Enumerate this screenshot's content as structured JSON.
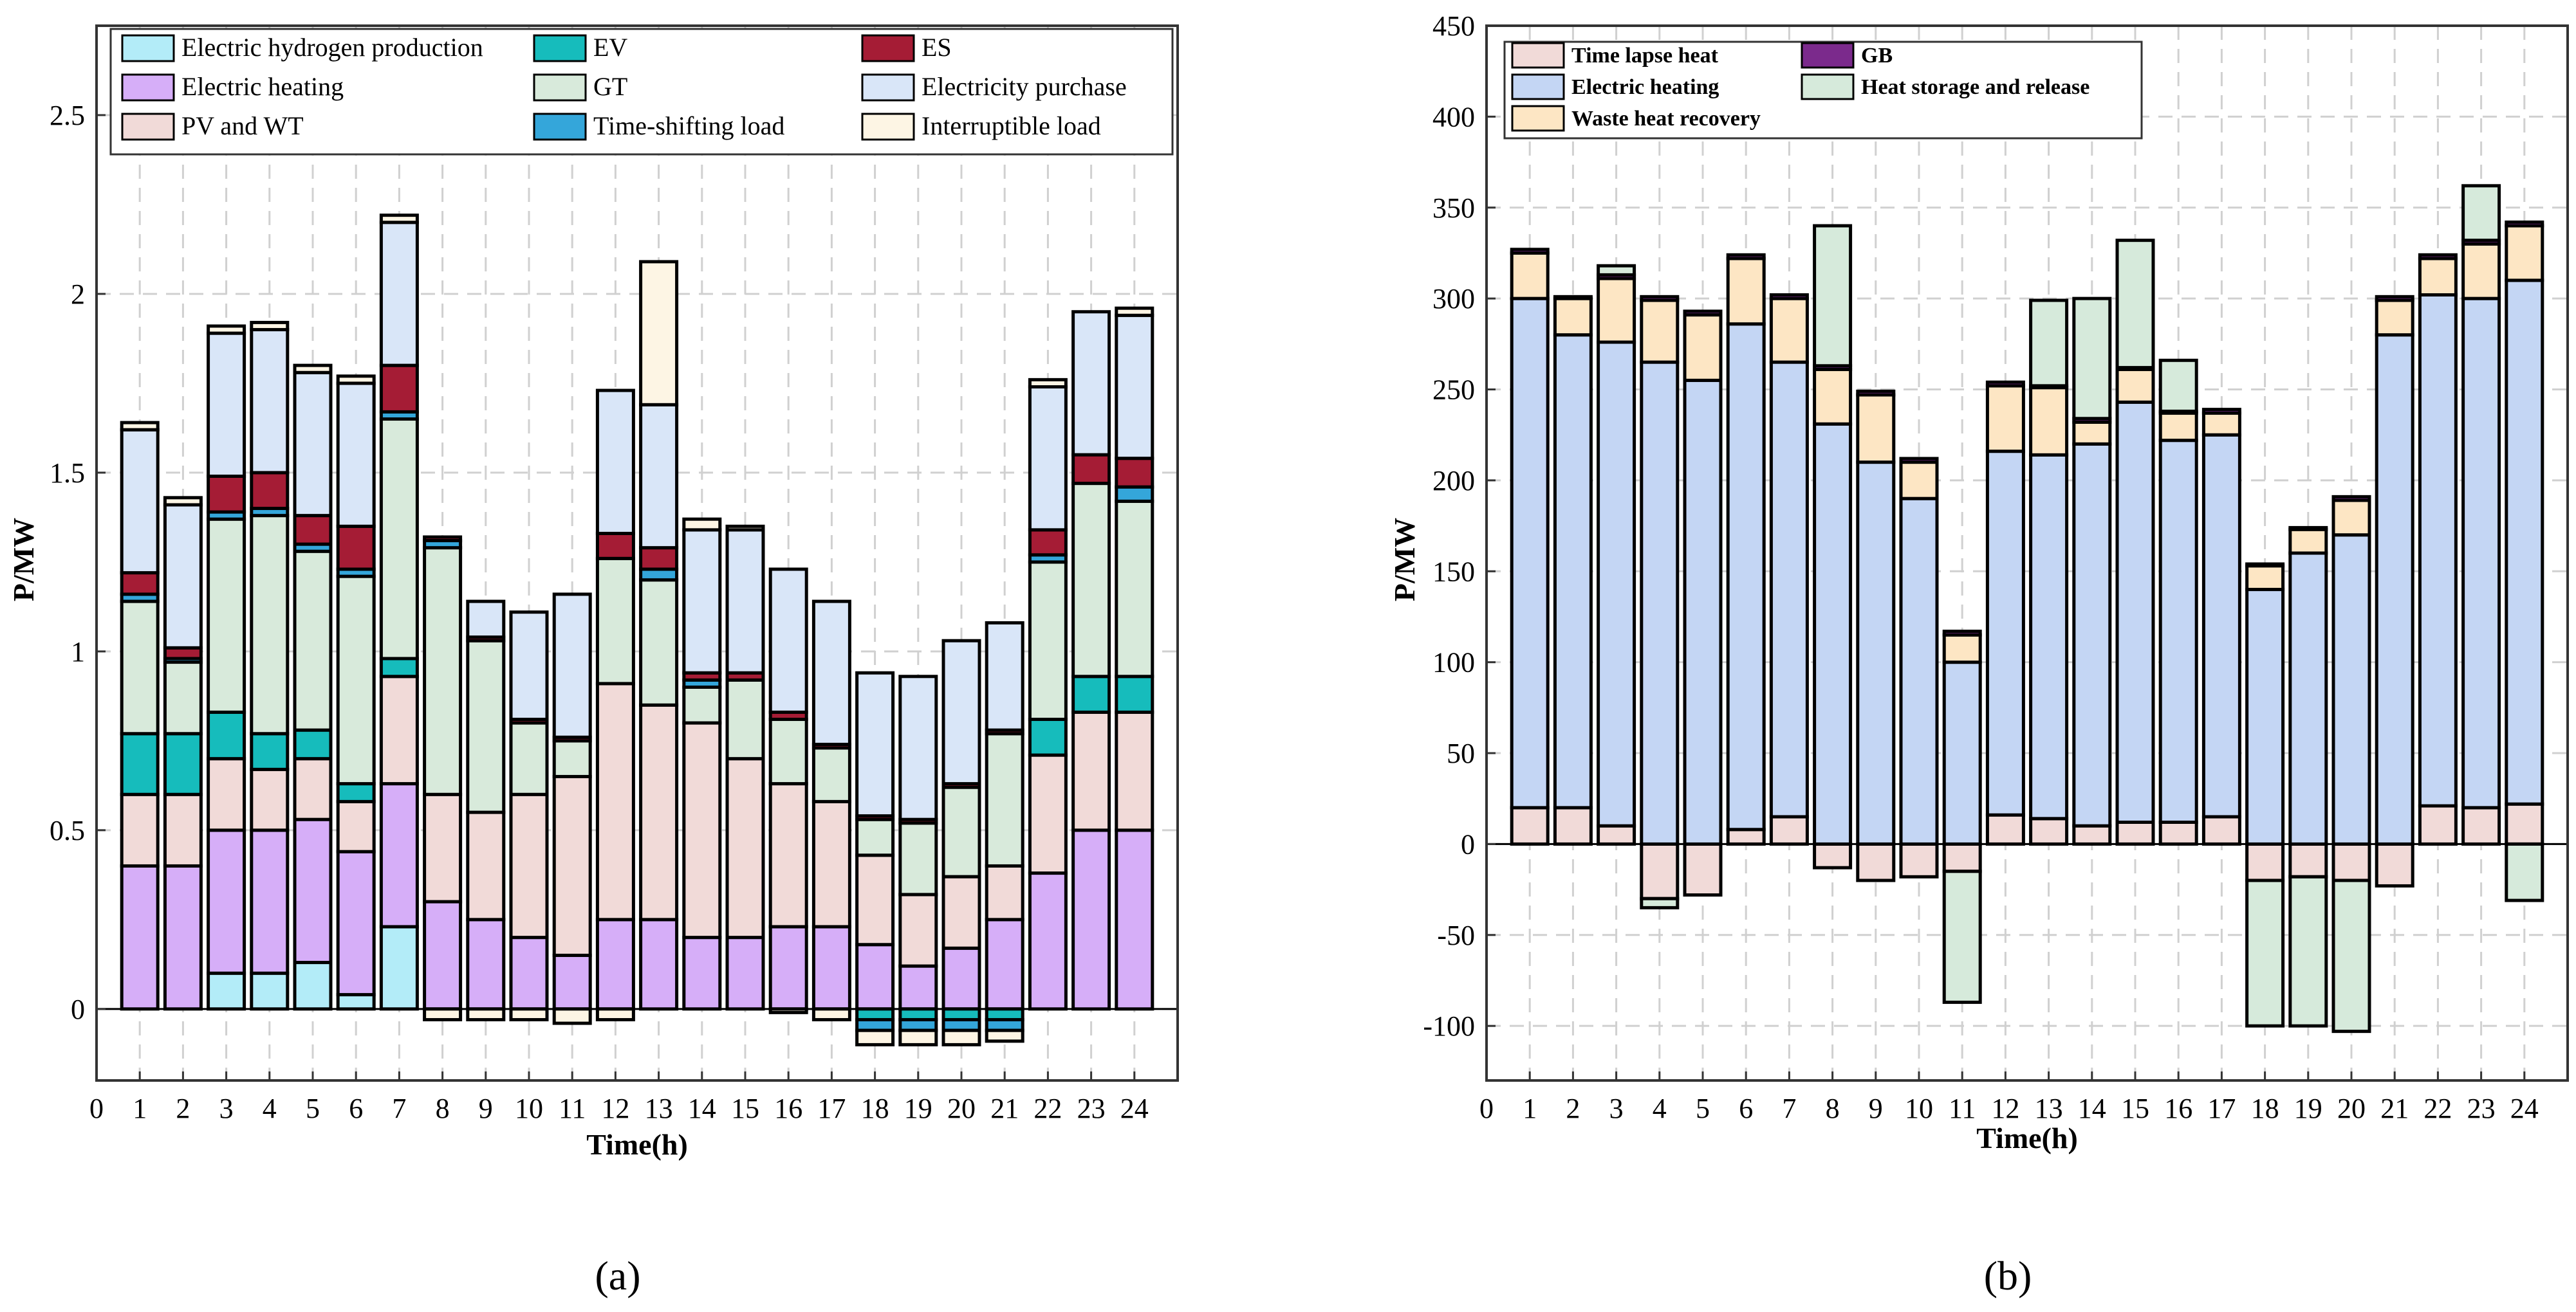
{
  "captions": {
    "a": "(a)",
    "b": "(b)"
  },
  "chart_data": [
    {
      "id": "a",
      "type": "bar",
      "stacked": true,
      "title": "",
      "xlabel": "Time(h)",
      "ylabel": "P/MW",
      "xlim": [
        0,
        25
      ],
      "ylim": [
        -0.2,
        2.75
      ],
      "yticks": [
        0,
        0.5,
        1,
        1.5,
        2,
        2.5
      ],
      "ytick_labels": [
        "0",
        "0.5",
        "1",
        "1.5",
        "2",
        "2.5"
      ],
      "xticks": [
        0,
        1,
        2,
        3,
        4,
        5,
        6,
        7,
        8,
        9,
        10,
        11,
        12,
        13,
        14,
        15,
        16,
        17,
        18,
        19,
        20,
        21,
        22,
        23,
        24
      ],
      "grid": true,
      "legend_position": "top",
      "categories": [
        1,
        2,
        3,
        4,
        5,
        6,
        7,
        8,
        9,
        10,
        11,
        12,
        13,
        14,
        15,
        16,
        17,
        18,
        19,
        20,
        21,
        22,
        23,
        24
      ],
      "legend": [
        {
          "name": "Electric hydrogen production",
          "color": "#b3ecf8"
        },
        {
          "name": "EV",
          "color": "#16bcbc"
        },
        {
          "name": "ES",
          "color": "#a51c35"
        },
        {
          "name": "Electric heating",
          "color": "#d6aef8"
        },
        {
          "name": "GT",
          "color": "#d8eadb"
        },
        {
          "name": "Electricity purchase",
          "color": "#d9e6f8"
        },
        {
          "name": "PV and WT",
          "color": "#f1dad8"
        },
        {
          "name": "Time-shifting load",
          "color": "#34a6da"
        },
        {
          "name": "Interruptible load",
          "color": "#fdf5e4"
        }
      ],
      "series": [
        {
          "name": "Electric hydrogen production",
          "color": "#b3ecf8",
          "values": [
            0,
            0,
            0.1,
            0.1,
            0.13,
            0.04,
            0.23,
            0,
            0,
            0,
            0,
            0,
            0,
            0,
            0,
            0,
            0,
            0,
            0,
            0,
            0,
            0,
            0,
            0
          ]
        },
        {
          "name": "Electric heating",
          "color": "#d6aef8",
          "values": [
            0.4,
            0.4,
            0.4,
            0.4,
            0.4,
            0.4,
            0.4,
            0.3,
            0.25,
            0.2,
            0.15,
            0.25,
            0.25,
            0.2,
            0.2,
            0.23,
            0.23,
            0.18,
            0.12,
            0.17,
            0.25,
            0.38,
            0.5,
            0.5
          ]
        },
        {
          "name": "PV and WT",
          "color": "#f1dad8",
          "values": [
            0.2,
            0.2,
            0.2,
            0.17,
            0.17,
            0.14,
            0.3,
            0.3,
            0.3,
            0.4,
            0.5,
            0.66,
            0.6,
            0.6,
            0.5,
            0.4,
            0.35,
            0.25,
            0.2,
            0.2,
            0.15,
            0.33,
            0.33,
            0.33
          ]
        },
        {
          "name": "EV",
          "color": "#16bcbc",
          "values": [
            0.17,
            0.17,
            0.13,
            0.1,
            0.08,
            0.05,
            0.05,
            0,
            0,
            0,
            0,
            0,
            0,
            0,
            0,
            0,
            0,
            -0.03,
            -0.03,
            -0.03,
            -0.03,
            0.1,
            0.1,
            0.1
          ]
        },
        {
          "name": "GT",
          "color": "#d8eadb",
          "values": [
            0.37,
            0.2,
            0.54,
            0.61,
            0.5,
            0.58,
            0.67,
            0.69,
            0.48,
            0.2,
            0.1,
            0.35,
            0.35,
            0.1,
            0.22,
            0.18,
            0.15,
            0.1,
            0.2,
            0.25,
            0.37,
            0.44,
            0.54,
            0.49
          ]
        },
        {
          "name": "Time-shifting load",
          "color": "#34a6da",
          "values": [
            0.02,
            0.01,
            0.02,
            0.02,
            0.02,
            0.02,
            0.02,
            0.02,
            0,
            0,
            0,
            0,
            0.03,
            0.02,
            0,
            0,
            0,
            -0.03,
            -0.03,
            -0.03,
            -0.03,
            0.02,
            0,
            0.04
          ]
        },
        {
          "name": "ES",
          "color": "#a51c35",
          "values": [
            0.06,
            0.03,
            0.1,
            0.1,
            0.08,
            0.12,
            0.13,
            0.01,
            0.01,
            0.01,
            0.01,
            0.07,
            0.06,
            0.02,
            0.02,
            0.02,
            0.01,
            0.01,
            0.01,
            0.01,
            0.01,
            0.07,
            0.08,
            0.08
          ]
        },
        {
          "name": "Electricity purchase",
          "color": "#d9e6f8",
          "values": [
            0.4,
            0.4,
            0.4,
            0.4,
            0.4,
            0.4,
            0.4,
            0,
            0.1,
            0.3,
            0.4,
            0.4,
            0.4,
            0.4,
            0.4,
            0.4,
            0.4,
            0.4,
            0.4,
            0.4,
            0.3,
            0.4,
            0.4,
            0.4
          ]
        },
        {
          "name": "Interruptible load",
          "color": "#fdf5e4",
          "values": [
            0.02,
            0.02,
            0.02,
            0.02,
            0.02,
            0.02,
            0.02,
            -0.03,
            -0.03,
            -0.03,
            -0.04,
            -0.03,
            0.4,
            0.03,
            0.01,
            -0.01,
            -0.03,
            -0.04,
            -0.04,
            -0.04,
            -0.03,
            0.02,
            0,
            0.02
          ]
        }
      ]
    },
    {
      "id": "b",
      "type": "bar",
      "stacked": true,
      "title": "",
      "xlabel": "Time(h)",
      "ylabel": "P/MW",
      "xlim": [
        0,
        25
      ],
      "ylim": [
        -130,
        450
      ],
      "yticks": [
        -100,
        -50,
        0,
        50,
        100,
        150,
        200,
        250,
        300,
        350,
        400,
        450
      ],
      "ytick_labels": [
        "-100",
        "-50",
        "0",
        "50",
        "100",
        "150",
        "200",
        "250",
        "300",
        "350",
        "400",
        "450"
      ],
      "xticks": [
        0,
        1,
        2,
        3,
        4,
        5,
        6,
        7,
        8,
        9,
        10,
        11,
        12,
        13,
        14,
        15,
        16,
        17,
        18,
        19,
        20,
        21,
        22,
        23,
        24
      ],
      "grid": true,
      "legend_position": "top-left",
      "categories": [
        1,
        2,
        3,
        4,
        5,
        6,
        7,
        8,
        9,
        10,
        11,
        12,
        13,
        14,
        15,
        16,
        17,
        18,
        19,
        20,
        21,
        22,
        23,
        24
      ],
      "legend": [
        {
          "name": "Time lapse heat",
          "color": "#f1dad8"
        },
        {
          "name": "GB",
          "color": "#7b2a8c"
        },
        {
          "name": "Electric heating",
          "color": "#c4d6f4"
        },
        {
          "name": "Heat storage and release",
          "color": "#d6eadb"
        },
        {
          "name": "Waste heat recovery",
          "color": "#fde6c4"
        }
      ],
      "series": [
        {
          "name": "Time lapse heat",
          "color": "#f1dad8",
          "values": [
            20,
            20,
            10,
            -30,
            -28,
            8,
            15,
            -13,
            -20,
            -18,
            -15,
            16,
            14,
            10,
            12,
            12,
            15,
            -20,
            -18,
            -20,
            -23,
            21,
            20,
            22
          ]
        },
        {
          "name": "Electric heating",
          "color": "#c4d6f4",
          "values": [
            280,
            260,
            266,
            265,
            255,
            278,
            250,
            231,
            210,
            190,
            100,
            200,
            200,
            210,
            231,
            210,
            210,
            140,
            160,
            170,
            280,
            281,
            280,
            288
          ]
        },
        {
          "name": "Waste heat recovery",
          "color": "#fde6c4",
          "values": [
            25,
            20,
            35,
            34,
            36,
            36,
            35,
            30,
            37,
            20,
            15,
            36,
            37,
            12,
            18,
            15,
            12,
            13,
            13,
            19,
            19,
            20,
            30,
            30
          ]
        },
        {
          "name": "GB",
          "color": "#7b2a8c",
          "values": [
            2,
            1,
            2,
            2,
            2,
            2,
            2,
            2,
            2,
            2,
            2,
            2,
            1,
            2,
            1,
            1,
            2,
            1,
            1,
            2,
            2,
            2,
            2,
            2
          ]
        },
        {
          "name": "Heat storage and release",
          "color": "#d6eadb",
          "values": [
            0,
            0,
            5,
            -5,
            0,
            0,
            0,
            77,
            0,
            0,
            -72,
            0,
            47,
            66,
            70,
            28,
            0,
            -80,
            -82,
            -83,
            0,
            0,
            30,
            -31
          ]
        }
      ]
    }
  ]
}
